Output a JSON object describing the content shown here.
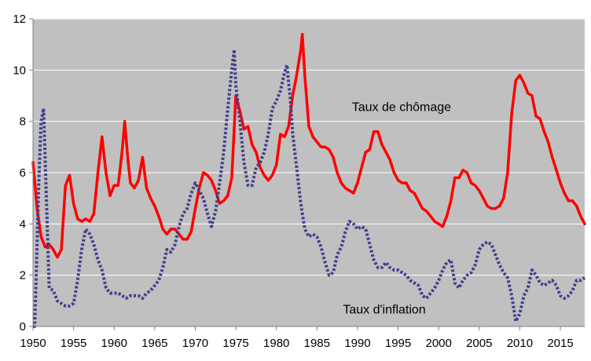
{
  "chart_data": {
    "type": "line",
    "title": "",
    "xlabel": "",
    "ylabel": "",
    "xlim": [
      1950,
      2018
    ],
    "ylim": [
      0,
      12
    ],
    "x_ticks": [
      1950,
      1955,
      1960,
      1965,
      1970,
      1975,
      1980,
      1985,
      1990,
      1995,
      2000,
      2005,
      2010,
      2015
    ],
    "y_ticks": [
      0,
      2,
      4,
      6,
      8,
      10,
      12
    ],
    "grid": "horizontal",
    "plot_background": "#c0c0c0",
    "series": [
      {
        "name": "Taux de chômage",
        "color": "#ff0000",
        "style": "solid",
        "points": [
          [
            1950.0,
            6.4
          ],
          [
            1950.5,
            4.6
          ],
          [
            1951.0,
            3.5
          ],
          [
            1951.5,
            3.1
          ],
          [
            1952.0,
            3.2
          ],
          [
            1952.5,
            3.0
          ],
          [
            1953.0,
            2.7
          ],
          [
            1953.5,
            3.0
          ],
          [
            1954.0,
            5.5
          ],
          [
            1954.5,
            5.9
          ],
          [
            1955.0,
            4.8
          ],
          [
            1955.5,
            4.2
          ],
          [
            1956.0,
            4.1
          ],
          [
            1956.5,
            4.2
          ],
          [
            1957.0,
            4.1
          ],
          [
            1957.5,
            4.4
          ],
          [
            1958.0,
            6.0
          ],
          [
            1958.5,
            7.4
          ],
          [
            1959.0,
            6.0
          ],
          [
            1959.5,
            5.1
          ],
          [
            1960.0,
            5.5
          ],
          [
            1960.5,
            5.5
          ],
          [
            1961.0,
            6.9
          ],
          [
            1961.3,
            8.0
          ],
          [
            1961.7,
            6.5
          ],
          [
            1962.0,
            5.6
          ],
          [
            1962.5,
            5.4
          ],
          [
            1963.0,
            5.7
          ],
          [
            1963.5,
            6.6
          ],
          [
            1964.0,
            5.4
          ],
          [
            1964.5,
            5.0
          ],
          [
            1965.0,
            4.7
          ],
          [
            1965.5,
            4.3
          ],
          [
            1966.0,
            3.8
          ],
          [
            1966.5,
            3.6
          ],
          [
            1967.0,
            3.8
          ],
          [
            1967.5,
            3.8
          ],
          [
            1968.0,
            3.6
          ],
          [
            1968.5,
            3.4
          ],
          [
            1969.0,
            3.4
          ],
          [
            1969.5,
            3.7
          ],
          [
            1970.0,
            4.6
          ],
          [
            1970.5,
            5.4
          ],
          [
            1971.0,
            6.0
          ],
          [
            1971.5,
            5.9
          ],
          [
            1972.0,
            5.7
          ],
          [
            1972.5,
            5.3
          ],
          [
            1973.0,
            4.8
          ],
          [
            1973.5,
            4.9
          ],
          [
            1974.0,
            5.1
          ],
          [
            1974.5,
            5.8
          ],
          [
            1975.0,
            9.0
          ],
          [
            1975.5,
            8.4
          ],
          [
            1976.0,
            7.7
          ],
          [
            1976.5,
            7.8
          ],
          [
            1977.0,
            7.1
          ],
          [
            1977.5,
            6.8
          ],
          [
            1978.0,
            6.2
          ],
          [
            1978.5,
            5.9
          ],
          [
            1979.0,
            5.7
          ],
          [
            1979.5,
            5.9
          ],
          [
            1980.0,
            6.3
          ],
          [
            1980.5,
            7.5
          ],
          [
            1981.0,
            7.4
          ],
          [
            1981.5,
            7.8
          ],
          [
            1982.0,
            9.0
          ],
          [
            1982.5,
            9.8
          ],
          [
            1983.0,
            10.8
          ],
          [
            1983.2,
            11.4
          ],
          [
            1983.5,
            9.8
          ],
          [
            1984.0,
            7.8
          ],
          [
            1984.5,
            7.4
          ],
          [
            1985.0,
            7.2
          ],
          [
            1985.5,
            7.0
          ],
          [
            1986.0,
            7.0
          ],
          [
            1986.5,
            6.9
          ],
          [
            1987.0,
            6.6
          ],
          [
            1987.5,
            6.0
          ],
          [
            1988.0,
            5.6
          ],
          [
            1988.5,
            5.4
          ],
          [
            1989.0,
            5.3
          ],
          [
            1989.5,
            5.2
          ],
          [
            1990.0,
            5.6
          ],
          [
            1990.5,
            6.2
          ],
          [
            1991.0,
            6.8
          ],
          [
            1991.5,
            6.9
          ],
          [
            1992.0,
            7.6
          ],
          [
            1992.5,
            7.6
          ],
          [
            1993.0,
            7.1
          ],
          [
            1993.5,
            6.8
          ],
          [
            1994.0,
            6.5
          ],
          [
            1994.5,
            6.0
          ],
          [
            1995.0,
            5.7
          ],
          [
            1995.5,
            5.6
          ],
          [
            1996.0,
            5.6
          ],
          [
            1996.5,
            5.3
          ],
          [
            1997.0,
            5.2
          ],
          [
            1997.5,
            4.9
          ],
          [
            1998.0,
            4.6
          ],
          [
            1998.5,
            4.5
          ],
          [
            1999.0,
            4.3
          ],
          [
            1999.5,
            4.1
          ],
          [
            2000.0,
            4.0
          ],
          [
            2000.5,
            3.9
          ],
          [
            2001.0,
            4.3
          ],
          [
            2001.5,
            4.9
          ],
          [
            2002.0,
            5.8
          ],
          [
            2002.5,
            5.8
          ],
          [
            2003.0,
            6.1
          ],
          [
            2003.5,
            6.0
          ],
          [
            2004.0,
            5.6
          ],
          [
            2004.5,
            5.5
          ],
          [
            2005.0,
            5.3
          ],
          [
            2005.5,
            5.0
          ],
          [
            2006.0,
            4.7
          ],
          [
            2006.5,
            4.6
          ],
          [
            2007.0,
            4.6
          ],
          [
            2007.5,
            4.7
          ],
          [
            2008.0,
            5.0
          ],
          [
            2008.5,
            6.0
          ],
          [
            2009.0,
            8.3
          ],
          [
            2009.5,
            9.6
          ],
          [
            2010.0,
            9.8
          ],
          [
            2010.5,
            9.5
          ],
          [
            2011.0,
            9.1
          ],
          [
            2011.5,
            9.0
          ],
          [
            2012.0,
            8.2
          ],
          [
            2012.5,
            8.1
          ],
          [
            2013.0,
            7.6
          ],
          [
            2013.5,
            7.2
          ],
          [
            2014.0,
            6.6
          ],
          [
            2014.5,
            6.1
          ],
          [
            2015.0,
            5.6
          ],
          [
            2015.5,
            5.2
          ],
          [
            2016.0,
            4.9
          ],
          [
            2016.5,
            4.9
          ],
          [
            2017.0,
            4.7
          ],
          [
            2017.5,
            4.3
          ],
          [
            2018.0,
            4.0
          ]
        ]
      },
      {
        "name": "Taux d'inflation",
        "color": "#3f3f8f",
        "style": "dotted",
        "points": [
          [
            1950.0,
            0.0
          ],
          [
            1950.2,
            0.0
          ],
          [
            1950.4,
            2.0
          ],
          [
            1950.7,
            5.5
          ],
          [
            1951.0,
            8.0
          ],
          [
            1951.3,
            8.5
          ],
          [
            1951.6,
            5.5
          ],
          [
            1952.0,
            1.5
          ],
          [
            1952.5,
            1.4
          ],
          [
            1953.0,
            1.0
          ],
          [
            1953.5,
            0.9
          ],
          [
            1954.0,
            0.8
          ],
          [
            1954.5,
            0.8
          ],
          [
            1955.0,
            0.9
          ],
          [
            1955.5,
            1.8
          ],
          [
            1956.0,
            3.0
          ],
          [
            1956.5,
            3.8
          ],
          [
            1957.0,
            3.6
          ],
          [
            1957.5,
            3.2
          ],
          [
            1958.0,
            2.6
          ],
          [
            1958.5,
            2.2
          ],
          [
            1959.0,
            1.5
          ],
          [
            1959.5,
            1.3
          ],
          [
            1960.0,
            1.3
          ],
          [
            1960.5,
            1.3
          ],
          [
            1961.0,
            1.2
          ],
          [
            1961.5,
            1.1
          ],
          [
            1962.0,
            1.2
          ],
          [
            1962.5,
            1.2
          ],
          [
            1963.0,
            1.2
          ],
          [
            1963.5,
            1.1
          ],
          [
            1964.0,
            1.3
          ],
          [
            1964.5,
            1.4
          ],
          [
            1965.0,
            1.6
          ],
          [
            1965.5,
            1.8
          ],
          [
            1966.0,
            2.3
          ],
          [
            1966.5,
            3.0
          ],
          [
            1967.0,
            2.9
          ],
          [
            1967.5,
            3.2
          ],
          [
            1968.0,
            3.9
          ],
          [
            1968.5,
            4.4
          ],
          [
            1969.0,
            4.6
          ],
          [
            1969.5,
            5.2
          ],
          [
            1970.0,
            5.6
          ],
          [
            1970.5,
            5.3
          ],
          [
            1971.0,
            5.0
          ],
          [
            1971.5,
            4.4
          ],
          [
            1972.0,
            3.9
          ],
          [
            1972.5,
            4.5
          ],
          [
            1973.0,
            5.6
          ],
          [
            1973.5,
            6.8
          ],
          [
            1974.0,
            8.5
          ],
          [
            1974.5,
            10.0
          ],
          [
            1974.8,
            10.8
          ],
          [
            1975.0,
            9.4
          ],
          [
            1975.5,
            8.0
          ],
          [
            1976.0,
            6.4
          ],
          [
            1976.5,
            5.5
          ],
          [
            1977.0,
            5.5
          ],
          [
            1977.5,
            6.2
          ],
          [
            1978.0,
            6.4
          ],
          [
            1978.5,
            6.8
          ],
          [
            1979.0,
            7.5
          ],
          [
            1979.5,
            8.5
          ],
          [
            1980.0,
            8.8
          ],
          [
            1980.5,
            9.2
          ],
          [
            1981.0,
            9.9
          ],
          [
            1981.3,
            10.2
          ],
          [
            1981.7,
            8.9
          ],
          [
            1982.0,
            7.5
          ],
          [
            1982.5,
            6.2
          ],
          [
            1983.0,
            4.8
          ],
          [
            1983.5,
            3.8
          ],
          [
            1984.0,
            3.5
          ],
          [
            1984.5,
            3.6
          ],
          [
            1985.0,
            3.5
          ],
          [
            1985.5,
            3.1
          ],
          [
            1986.0,
            2.5
          ],
          [
            1986.5,
            2.0
          ],
          [
            1987.0,
            2.1
          ],
          [
            1987.5,
            2.8
          ],
          [
            1988.0,
            3.1
          ],
          [
            1988.5,
            3.7
          ],
          [
            1989.0,
            4.1
          ],
          [
            1989.5,
            4.0
          ],
          [
            1990.0,
            3.8
          ],
          [
            1990.5,
            3.9
          ],
          [
            1991.0,
            3.8
          ],
          [
            1991.5,
            3.2
          ],
          [
            1992.0,
            2.6
          ],
          [
            1992.5,
            2.3
          ],
          [
            1993.0,
            2.3
          ],
          [
            1993.5,
            2.5
          ],
          [
            1994.0,
            2.3
          ],
          [
            1994.5,
            2.2
          ],
          [
            1995.0,
            2.2
          ],
          [
            1995.5,
            2.1
          ],
          [
            1996.0,
            2.0
          ],
          [
            1996.5,
            1.8
          ],
          [
            1997.0,
            1.7
          ],
          [
            1997.5,
            1.6
          ],
          [
            1998.0,
            1.2
          ],
          [
            1998.5,
            1.1
          ],
          [
            1999.0,
            1.3
          ],
          [
            1999.5,
            1.5
          ],
          [
            2000.0,
            1.8
          ],
          [
            2000.5,
            2.2
          ],
          [
            2001.0,
            2.5
          ],
          [
            2001.5,
            2.6
          ],
          [
            2002.0,
            1.7
          ],
          [
            2002.5,
            1.5
          ],
          [
            2003.0,
            1.8
          ],
          [
            2003.5,
            2.0
          ],
          [
            2004.0,
            2.1
          ],
          [
            2004.5,
            2.4
          ],
          [
            2005.0,
            3.0
          ],
          [
            2005.5,
            3.2
          ],
          [
            2006.0,
            3.3
          ],
          [
            2006.5,
            3.2
          ],
          [
            2007.0,
            2.8
          ],
          [
            2007.5,
            2.4
          ],
          [
            2008.0,
            2.1
          ],
          [
            2008.5,
            1.9
          ],
          [
            2009.0,
            1.2
          ],
          [
            2009.5,
            0.2
          ],
          [
            2010.0,
            0.5
          ],
          [
            2010.5,
            1.2
          ],
          [
            2011.0,
            1.5
          ],
          [
            2011.5,
            2.2
          ],
          [
            2012.0,
            2.0
          ],
          [
            2012.5,
            1.7
          ],
          [
            2013.0,
            1.6
          ],
          [
            2013.5,
            1.7
          ],
          [
            2014.0,
            1.8
          ],
          [
            2014.5,
            1.6
          ],
          [
            2015.0,
            1.2
          ],
          [
            2015.5,
            1.1
          ],
          [
            2016.0,
            1.2
          ],
          [
            2016.5,
            1.4
          ],
          [
            2017.0,
            1.8
          ],
          [
            2017.5,
            1.8
          ],
          [
            2018.0,
            1.9
          ]
        ]
      }
    ],
    "annotations": [
      {
        "series": 0,
        "text": "Taux de chômage",
        "at": [
          1989.3,
          8.4
        ]
      },
      {
        "series": 1,
        "text": "Taux d'inflation",
        "at": [
          1988.2,
          0.5
        ]
      }
    ]
  }
}
